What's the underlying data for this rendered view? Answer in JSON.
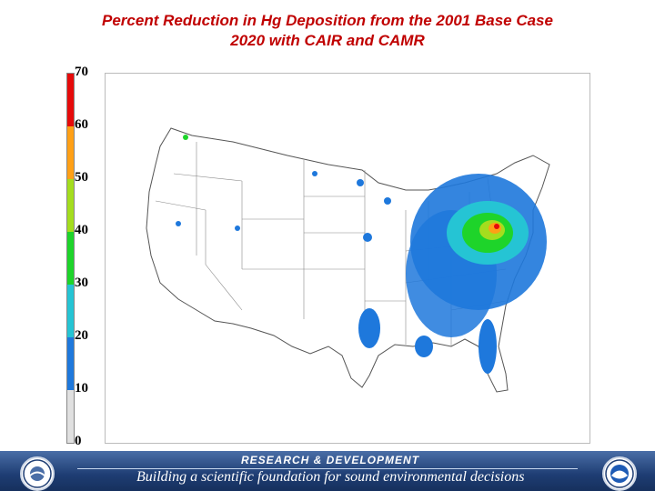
{
  "title": {
    "line1": "Percent Reduction in Hg Deposition from the 2001 Base Case",
    "line2": "2020 with CAIR and CAMR"
  },
  "legend": {
    "ticks": [
      "70",
      "60",
      "50",
      "40",
      "30",
      "20",
      "10",
      "0"
    ],
    "colors": [
      "#e0e0e0",
      "#1e78dc",
      "#25c4d4",
      "#1ed42a",
      "#a4dd1e",
      "#ffa016",
      "#e60a0a"
    ]
  },
  "footer": {
    "top": "RESEARCH & DEVELOPMENT",
    "bottom": "Building a scientific foundation for sound environmental decisions"
  },
  "icons": {
    "left_logo": "epa-seal-icon",
    "right_logo": "noaa-logo-icon"
  }
}
